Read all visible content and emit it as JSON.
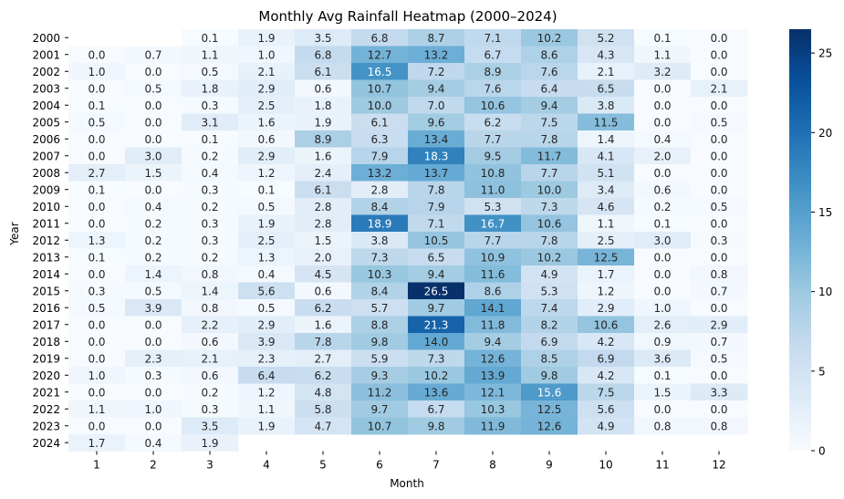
{
  "chart_data": {
    "type": "heatmap",
    "title": "Monthly Avg Rainfall Heatmap (2000–2024)",
    "xlabel": "Month",
    "ylabel": "Year",
    "x": [
      "1",
      "2",
      "3",
      "4",
      "5",
      "6",
      "7",
      "8",
      "9",
      "10",
      "11",
      "12"
    ],
    "y": [
      "2000",
      "2001",
      "2002",
      "2003",
      "2004",
      "2005",
      "2006",
      "2007",
      "2008",
      "2009",
      "2010",
      "2011",
      "2012",
      "2013",
      "2014",
      "2015",
      "2016",
      "2017",
      "2018",
      "2019",
      "2020",
      "2021",
      "2022",
      "2023",
      "2024"
    ],
    "values": [
      [
        null,
        null,
        0.1,
        1.9,
        3.5,
        6.8,
        8.7,
        7.1,
        10.2,
        5.2,
        0.1,
        0.0
      ],
      [
        0.0,
        0.7,
        1.1,
        1.0,
        6.8,
        12.7,
        13.2,
        6.7,
        8.6,
        4.3,
        1.1,
        0.0
      ],
      [
        1.0,
        0.0,
        0.5,
        2.1,
        6.1,
        16.5,
        7.2,
        8.9,
        7.6,
        2.1,
        3.2,
        0.0
      ],
      [
        0.0,
        0.5,
        1.8,
        2.9,
        0.6,
        10.7,
        9.4,
        7.6,
        6.4,
        6.5,
        0.0,
        2.1
      ],
      [
        0.1,
        0.0,
        0.3,
        2.5,
        1.8,
        10.0,
        7.0,
        10.6,
        9.4,
        3.8,
        0.0,
        0.0
      ],
      [
        0.5,
        0.0,
        3.1,
        1.6,
        1.9,
        6.1,
        9.6,
        6.2,
        7.5,
        11.5,
        0.0,
        0.5
      ],
      [
        0.0,
        0.0,
        0.1,
        0.6,
        8.9,
        6.3,
        13.4,
        7.7,
        7.8,
        1.4,
        0.4,
        0.0
      ],
      [
        0.0,
        3.0,
        0.2,
        2.9,
        1.6,
        7.9,
        18.3,
        9.5,
        11.7,
        4.1,
        2.0,
        0.0
      ],
      [
        2.7,
        1.5,
        0.4,
        1.2,
        2.4,
        13.2,
        13.7,
        10.8,
        7.7,
        5.1,
        0.0,
        0.0
      ],
      [
        0.1,
        0.0,
        0.3,
        0.1,
        6.1,
        2.8,
        7.8,
        11.0,
        10.0,
        3.4,
        0.6,
        0.0
      ],
      [
        0.0,
        0.4,
        0.2,
        0.5,
        2.8,
        8.4,
        7.9,
        5.3,
        7.3,
        4.6,
        0.2,
        0.5
      ],
      [
        0.0,
        0.2,
        0.3,
        1.9,
        2.8,
        18.9,
        7.1,
        16.7,
        10.6,
        1.1,
        0.1,
        0.0
      ],
      [
        1.3,
        0.2,
        0.3,
        2.5,
        1.5,
        3.8,
        10.5,
        7.7,
        7.8,
        2.5,
        3.0,
        0.3
      ],
      [
        0.1,
        0.2,
        0.2,
        1.3,
        2.0,
        7.3,
        6.5,
        10.9,
        10.2,
        12.5,
        0.0,
        0.0
      ],
      [
        0.0,
        1.4,
        0.8,
        0.4,
        4.5,
        10.3,
        9.4,
        11.6,
        4.9,
        1.7,
        0.0,
        0.8
      ],
      [
        0.3,
        0.5,
        1.4,
        5.6,
        0.6,
        8.4,
        26.5,
        8.6,
        5.3,
        1.2,
        0.0,
        0.7
      ],
      [
        0.5,
        3.9,
        0.8,
        0.5,
        6.2,
        5.7,
        9.7,
        14.1,
        7.4,
        2.9,
        1.0,
        0.0
      ],
      [
        0.0,
        0.0,
        2.2,
        2.9,
        1.6,
        8.8,
        21.3,
        11.8,
        8.2,
        10.6,
        2.6,
        2.9
      ],
      [
        0.0,
        0.0,
        0.6,
        3.9,
        7.8,
        9.8,
        14.0,
        9.4,
        6.9,
        4.2,
        0.9,
        0.7
      ],
      [
        0.0,
        2.3,
        2.1,
        2.3,
        2.7,
        5.9,
        7.3,
        12.6,
        8.5,
        6.9,
        3.6,
        0.5
      ],
      [
        1.0,
        0.3,
        0.6,
        6.4,
        6.2,
        9.3,
        10.2,
        13.9,
        9.8,
        4.2,
        0.1,
        0.0
      ],
      [
        0.0,
        0.0,
        0.2,
        1.2,
        4.8,
        11.2,
        13.6,
        12.1,
        15.6,
        7.5,
        1.5,
        3.3
      ],
      [
        1.1,
        1.0,
        0.3,
        1.1,
        5.8,
        9.7,
        6.7,
        10.3,
        12.5,
        5.6,
        0.0,
        0.0
      ],
      [
        0.0,
        0.0,
        3.5,
        1.9,
        4.7,
        10.7,
        9.8,
        11.9,
        12.6,
        4.9,
        0.8,
        0.8
      ],
      [
        1.7,
        0.4,
        1.9,
        null,
        null,
        null,
        null,
        null,
        null,
        null,
        null,
        null
      ]
    ],
    "vmin": 0,
    "vmax": 26.5,
    "colorbar_ticks": [
      0,
      5,
      10,
      15,
      20,
      25
    ],
    "colormap": "Blues",
    "colormap_stops": [
      "#f7fbff",
      "#deebf7",
      "#c6dbef",
      "#9ecae1",
      "#6baed6",
      "#4292c6",
      "#2171b5",
      "#08519c",
      "#08306b"
    ],
    "annotation_format": "0.0",
    "grid": false,
    "legend": "colorbar-right"
  }
}
